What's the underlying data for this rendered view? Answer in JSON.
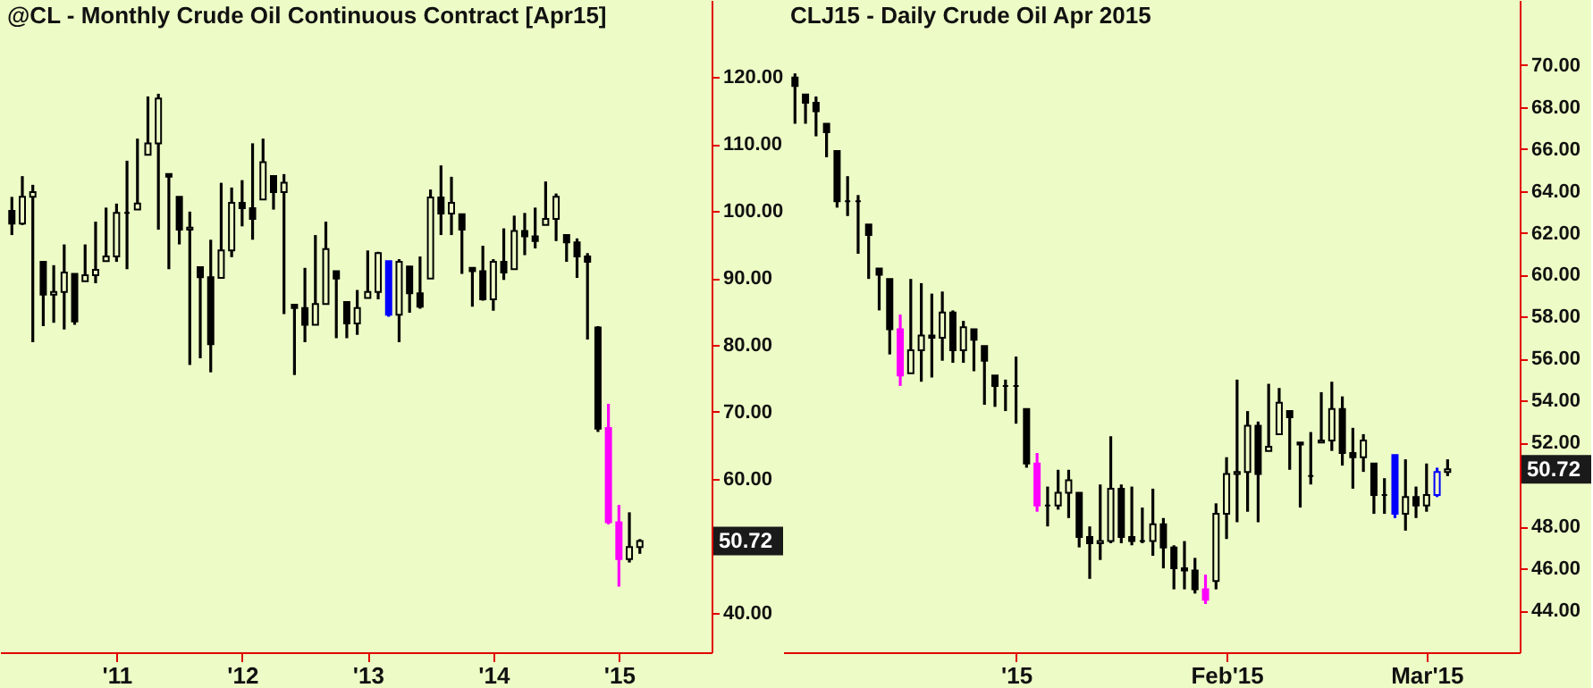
{
  "chart_data": [
    {
      "type": "candlestick",
      "title": "@CL - Monthly  Crude Oil Continuous Contract [Apr15]",
      "categories": [
        null,
        null,
        null,
        null,
        null,
        null,
        null,
        null,
        null,
        null,
        "'11",
        null,
        null,
        null,
        null,
        null,
        null,
        null,
        null,
        null,
        null,
        null,
        "'12",
        null,
        null,
        null,
        null,
        null,
        null,
        null,
        null,
        null,
        null,
        null,
        "'13",
        null,
        null,
        null,
        null,
        null,
        null,
        null,
        null,
        null,
        null,
        null,
        "'14",
        null,
        null,
        null,
        null,
        null,
        null,
        null,
        null,
        null,
        null,
        null,
        "'15",
        null,
        null
      ],
      "ohlc": [
        [
          100.0,
          102.1,
          96.4,
          98.1
        ],
        [
          98.1,
          105.2,
          97.9,
          102.1
        ],
        [
          102.1,
          103.9,
          80.4,
          102.8
        ],
        [
          92.4,
          92.4,
          82.8,
          87.5
        ],
        [
          87.5,
          91.9,
          83.3,
          87.9
        ],
        [
          87.9,
          95.0,
          82.3,
          90.8
        ],
        [
          90.6,
          90.6,
          83.0,
          83.5
        ],
        [
          89.5,
          95.0,
          89.5,
          90.4
        ],
        [
          90.4,
          98.4,
          89.2,
          91.2
        ],
        [
          92.5,
          100.5,
          92.5,
          93.2
        ],
        [
          93.2,
          101.1,
          92.4,
          99.7
        ],
        [
          99.7,
          107.5,
          91.3,
          99.7
        ],
        [
          100.2,
          110.8,
          100.2,
          101.1
        ],
        [
          108.4,
          117.1,
          108.4,
          110.1
        ],
        [
          110.1,
          117.5,
          97.2,
          116.8
        ],
        [
          105.5,
          105.5,
          91.3,
          105.1
        ],
        [
          102.1,
          102.1,
          95.0,
          97.2
        ],
        [
          97.2,
          99.9,
          77.0,
          97.5
        ],
        [
          91.6,
          91.6,
          78.0,
          90.1
        ],
        [
          90.1,
          95.7,
          75.9,
          80.1
        ],
        [
          90.0,
          104.2,
          90.0,
          94.1
        ],
        [
          94.1,
          103.5,
          93.1,
          101.2
        ],
        [
          101.2,
          104.6,
          97.7,
          100.4
        ],
        [
          100.4,
          110.1,
          95.7,
          98.8
        ],
        [
          101.7,
          110.8,
          101.7,
          107.3
        ],
        [
          105.2,
          105.2,
          100.2,
          102.8
        ],
        [
          102.8,
          105.5,
          84.6,
          104.2
        ],
        [
          86.0,
          86.0,
          75.5,
          85.5
        ],
        [
          85.5,
          91.5,
          80.4,
          83.0
        ],
        [
          83.0,
          96.4,
          83.0,
          86.1
        ],
        [
          86.1,
          98.4,
          86.1,
          94.3
        ],
        [
          91.0,
          91.0,
          81.0,
          89.9
        ],
        [
          86.4,
          86.4,
          81.0,
          83.2
        ],
        [
          83.2,
          88.2,
          81.5,
          85.5
        ],
        [
          87.0,
          94.1,
          87.0,
          87.9
        ],
        [
          87.9,
          93.9,
          86.8,
          93.7
        ],
        [
          92.5,
          92.5,
          84.2,
          84.5
        ],
        [
          84.5,
          92.8,
          80.4,
          92.4
        ],
        [
          91.7,
          91.7,
          84.8,
          87.7
        ],
        [
          87.7,
          93.2,
          85.4,
          85.7
        ],
        [
          89.9,
          103.2,
          89.9,
          102.0
        ],
        [
          102.0,
          106.8,
          96.4,
          99.6
        ],
        [
          99.6,
          105.1,
          96.4,
          101.2
        ],
        [
          99.5,
          99.5,
          90.6,
          97.2
        ],
        [
          91.5,
          91.5,
          85.7,
          91.0
        ],
        [
          91.0,
          94.8,
          86.6,
          86.8
        ],
        [
          86.8,
          92.8,
          85.1,
          92.4
        ],
        [
          92.4,
          97.4,
          89.7,
          90.8
        ],
        [
          91.3,
          99.3,
          91.3,
          97.0
        ],
        [
          97.0,
          99.7,
          93.4,
          96.2
        ],
        [
          96.2,
          100.5,
          94.4,
          95.5
        ],
        [
          97.9,
          104.4,
          97.9,
          98.8
        ],
        [
          98.8,
          102.6,
          95.5,
          102.1
        ],
        [
          96.4,
          96.4,
          92.4,
          95.3
        ],
        [
          95.3,
          95.9,
          90.0,
          93.2
        ],
        [
          93.2,
          93.7,
          80.8,
          92.4
        ],
        [
          82.6,
          82.8,
          67.0,
          67.5
        ],
        [
          67.6,
          71.2,
          53.2,
          53.5
        ],
        [
          53.5,
          56.1,
          43.9,
          48.0
        ],
        [
          48.0,
          55.0,
          47.5,
          49.8
        ],
        [
          49.8,
          51.0,
          48.8,
          50.72
        ]
      ],
      "colors": [
        "#000000",
        "#000000",
        "#000000",
        "#000000",
        "#000000",
        "#000000",
        "#000000",
        "#000000",
        "#000000",
        "#000000",
        "#000000",
        "#000000",
        "#000000",
        "#000000",
        "#000000",
        "#000000",
        "#000000",
        "#000000",
        "#000000",
        "#000000",
        "#000000",
        "#000000",
        "#000000",
        "#000000",
        "#000000",
        "#000000",
        "#000000",
        "#000000",
        "#000000",
        "#000000",
        "#000000",
        "#000000",
        "#000000",
        "#000000",
        "#000000",
        "#000000",
        "#0000ff",
        "#000000",
        "#000000",
        "#000000",
        "#000000",
        "#000000",
        "#000000",
        "#000000",
        "#000000",
        "#000000",
        "#000000",
        "#000000",
        "#000000",
        "#000000",
        "#000000",
        "#000000",
        "#000000",
        "#000000",
        "#000000",
        "#000000",
        "#000000",
        "#ff00ff",
        "#ff00ff",
        "#000000",
        "#000000"
      ],
      "ylim": [
        34.1,
        131.5
      ],
      "yticks": [
        {
          "value": 40,
          "label": "40.00"
        },
        {
          "value": 60,
          "label": "60.00"
        },
        {
          "value": 70,
          "label": "70.00"
        },
        {
          "value": 80,
          "label": "80.00"
        },
        {
          "value": 90,
          "label": "90.00"
        },
        {
          "value": 100,
          "label": "100.00"
        },
        {
          "value": 110,
          "label": "110.00"
        },
        {
          "value": 120,
          "label": "120.00"
        }
      ],
      "annotations": [
        "50.72"
      ],
      "grid": false
    },
    {
      "type": "candlestick",
      "title": "CLJ15 - Daily  Crude Oil Apr 2015",
      "categories": [
        null,
        null,
        null,
        null,
        null,
        null,
        null,
        null,
        null,
        null,
        null,
        null,
        null,
        null,
        null,
        null,
        null,
        null,
        null,
        null,
        null,
        "'15",
        null,
        null,
        null,
        null,
        null,
        null,
        null,
        null,
        null,
        null,
        null,
        null,
        null,
        null,
        null,
        null,
        null,
        null,
        null,
        "Feb'15",
        null,
        null,
        null,
        null,
        null,
        null,
        null,
        null,
        null,
        null,
        null,
        null,
        null,
        null,
        null,
        null,
        null,
        null,
        "Mar'15",
        null,
        null
      ],
      "ohlc": [
        [
          69.4,
          69.6,
          67.2,
          69.0
        ],
        [
          68.6,
          68.6,
          67.2,
          68.2
        ],
        [
          68.2,
          68.5,
          66.6,
          67.8
        ],
        [
          67.2,
          67.2,
          65.6,
          66.8
        ],
        [
          65.9,
          65.9,
          63.2,
          63.5
        ],
        [
          63.5,
          64.7,
          62.8,
          63.5
        ],
        [
          63.5,
          63.8,
          61.0,
          63.5
        ],
        [
          62.4,
          62.4,
          59.8,
          61.9
        ],
        [
          60.3,
          60.3,
          58.3,
          60.0
        ],
        [
          59.8,
          59.8,
          56.2,
          57.4
        ],
        [
          57.4,
          58.1,
          54.7,
          55.2
        ],
        [
          55.3,
          59.8,
          55.3,
          56.4
        ],
        [
          56.4,
          59.6,
          54.9,
          57.1
        ],
        [
          57.1,
          59.1,
          55.1,
          57.0
        ],
        [
          57.0,
          59.2,
          55.9,
          58.2
        ],
        [
          58.2,
          58.3,
          55.8,
          56.4
        ],
        [
          56.4,
          57.8,
          55.8,
          57.5
        ],
        [
          57.4,
          57.4,
          55.4,
          56.9
        ],
        [
          56.6,
          56.6,
          53.8,
          55.9
        ],
        [
          55.2,
          55.2,
          53.7,
          54.7
        ],
        [
          54.7,
          55.0,
          53.5,
          54.7
        ],
        [
          54.7,
          56.1,
          52.9,
          54.7
        ],
        [
          53.6,
          53.6,
          50.8,
          51.0
        ],
        [
          51.0,
          51.5,
          48.7,
          49.0
        ],
        [
          49.0,
          49.9,
          48.0,
          49.0
        ],
        [
          49.0,
          50.7,
          48.8,
          49.6
        ],
        [
          49.6,
          50.7,
          48.4,
          50.2
        ],
        [
          49.6,
          49.6,
          47.0,
          47.5
        ],
        [
          47.5,
          48.0,
          45.5,
          47.2
        ],
        [
          47.2,
          50.0,
          46.4,
          47.3
        ],
        [
          47.3,
          52.3,
          47.2,
          49.8
        ],
        [
          49.8,
          50.0,
          47.2,
          47.5
        ],
        [
          47.5,
          49.9,
          47.1,
          47.3
        ],
        [
          47.3,
          48.9,
          47.2,
          47.3
        ],
        [
          47.3,
          49.8,
          46.6,
          48.1
        ],
        [
          48.1,
          48.4,
          46.0,
          47.0
        ],
        [
          47.0,
          47.1,
          45.0,
          46.0
        ],
        [
          46.0,
          47.3,
          45.0,
          45.9
        ],
        [
          45.9,
          46.5,
          44.8,
          45.0
        ],
        [
          45.0,
          45.7,
          44.3,
          44.5
        ],
        [
          45.4,
          49.1,
          45.0,
          48.6
        ],
        [
          48.6,
          51.3,
          47.4,
          50.5
        ],
        [
          50.5,
          55.0,
          48.2,
          50.6
        ],
        [
          50.6,
          53.5,
          48.7,
          52.8
        ],
        [
          52.8,
          53.0,
          48.2,
          50.5
        ],
        [
          51.6,
          54.8,
          51.6,
          51.8
        ],
        [
          52.4,
          54.6,
          52.4,
          53.9
        ],
        [
          53.5,
          53.5,
          50.7,
          53.2
        ],
        [
          52.0,
          52.0,
          48.9,
          51.9
        ],
        [
          50.4,
          52.5,
          50.0,
          50.4
        ],
        [
          52.0,
          54.4,
          52.0,
          52.1
        ],
        [
          52.1,
          54.9,
          51.6,
          53.6
        ],
        [
          53.6,
          54.2,
          50.9,
          51.5
        ],
        [
          51.5,
          52.7,
          49.8,
          51.3
        ],
        [
          51.3,
          52.4,
          50.6,
          52.1
        ],
        [
          51.0,
          51.0,
          48.6,
          49.5
        ],
        [
          49.5,
          50.3,
          48.6,
          49.5
        ],
        [
          51.4,
          51.4,
          48.4,
          48.6
        ],
        [
          48.6,
          51.2,
          47.8,
          49.4
        ],
        [
          49.4,
          49.9,
          48.4,
          49.0
        ],
        [
          49.0,
          51.0,
          48.7,
          49.5
        ],
        [
          49.5,
          50.8,
          49.4,
          50.6
        ],
        [
          50.6,
          51.2,
          50.4,
          50.72
        ]
      ],
      "colors": [
        "#000000",
        "#000000",
        "#000000",
        "#000000",
        "#000000",
        "#000000",
        "#000000",
        "#000000",
        "#000000",
        "#000000",
        "#ff00ff",
        "#000000",
        "#000000",
        "#000000",
        "#000000",
        "#000000",
        "#000000",
        "#000000",
        "#000000",
        "#000000",
        "#000000",
        "#000000",
        "#000000",
        "#ff00ff",
        "#000000",
        "#000000",
        "#000000",
        "#000000",
        "#000000",
        "#000000",
        "#000000",
        "#000000",
        "#000000",
        "#000000",
        "#000000",
        "#000000",
        "#000000",
        "#000000",
        "#000000",
        "#ff00ff",
        "#000000",
        "#000000",
        "#000000",
        "#000000",
        "#000000",
        "#000000",
        "#000000",
        "#000000",
        "#000000",
        "#000000",
        "#000000",
        "#000000",
        "#000000",
        "#000000",
        "#000000",
        "#000000",
        "#000000",
        "#0000ff",
        "#000000",
        "#000000",
        "#000000",
        "#0000ff",
        "#000000"
      ],
      "ylim": [
        42.0,
        73.1
      ],
      "yticks": [
        {
          "value": 44,
          "label": "44.00"
        },
        {
          "value": 46,
          "label": "46.00"
        },
        {
          "value": 48,
          "label": "48.00"
        },
        {
          "value": 52,
          "label": "52.00"
        },
        {
          "value": 54,
          "label": "54.00"
        },
        {
          "value": 56,
          "label": "56.00"
        },
        {
          "value": 58,
          "label": "58.00"
        },
        {
          "value": 60,
          "label": "60.00"
        },
        {
          "value": 62,
          "label": "62.00"
        },
        {
          "value": 64,
          "label": "64.00"
        },
        {
          "value": 66,
          "label": "66.00"
        },
        {
          "value": 68,
          "label": "68.00"
        },
        {
          "value": 70,
          "label": "70.00"
        }
      ],
      "annotations": [
        "50.72"
      ],
      "grid": false
    }
  ]
}
